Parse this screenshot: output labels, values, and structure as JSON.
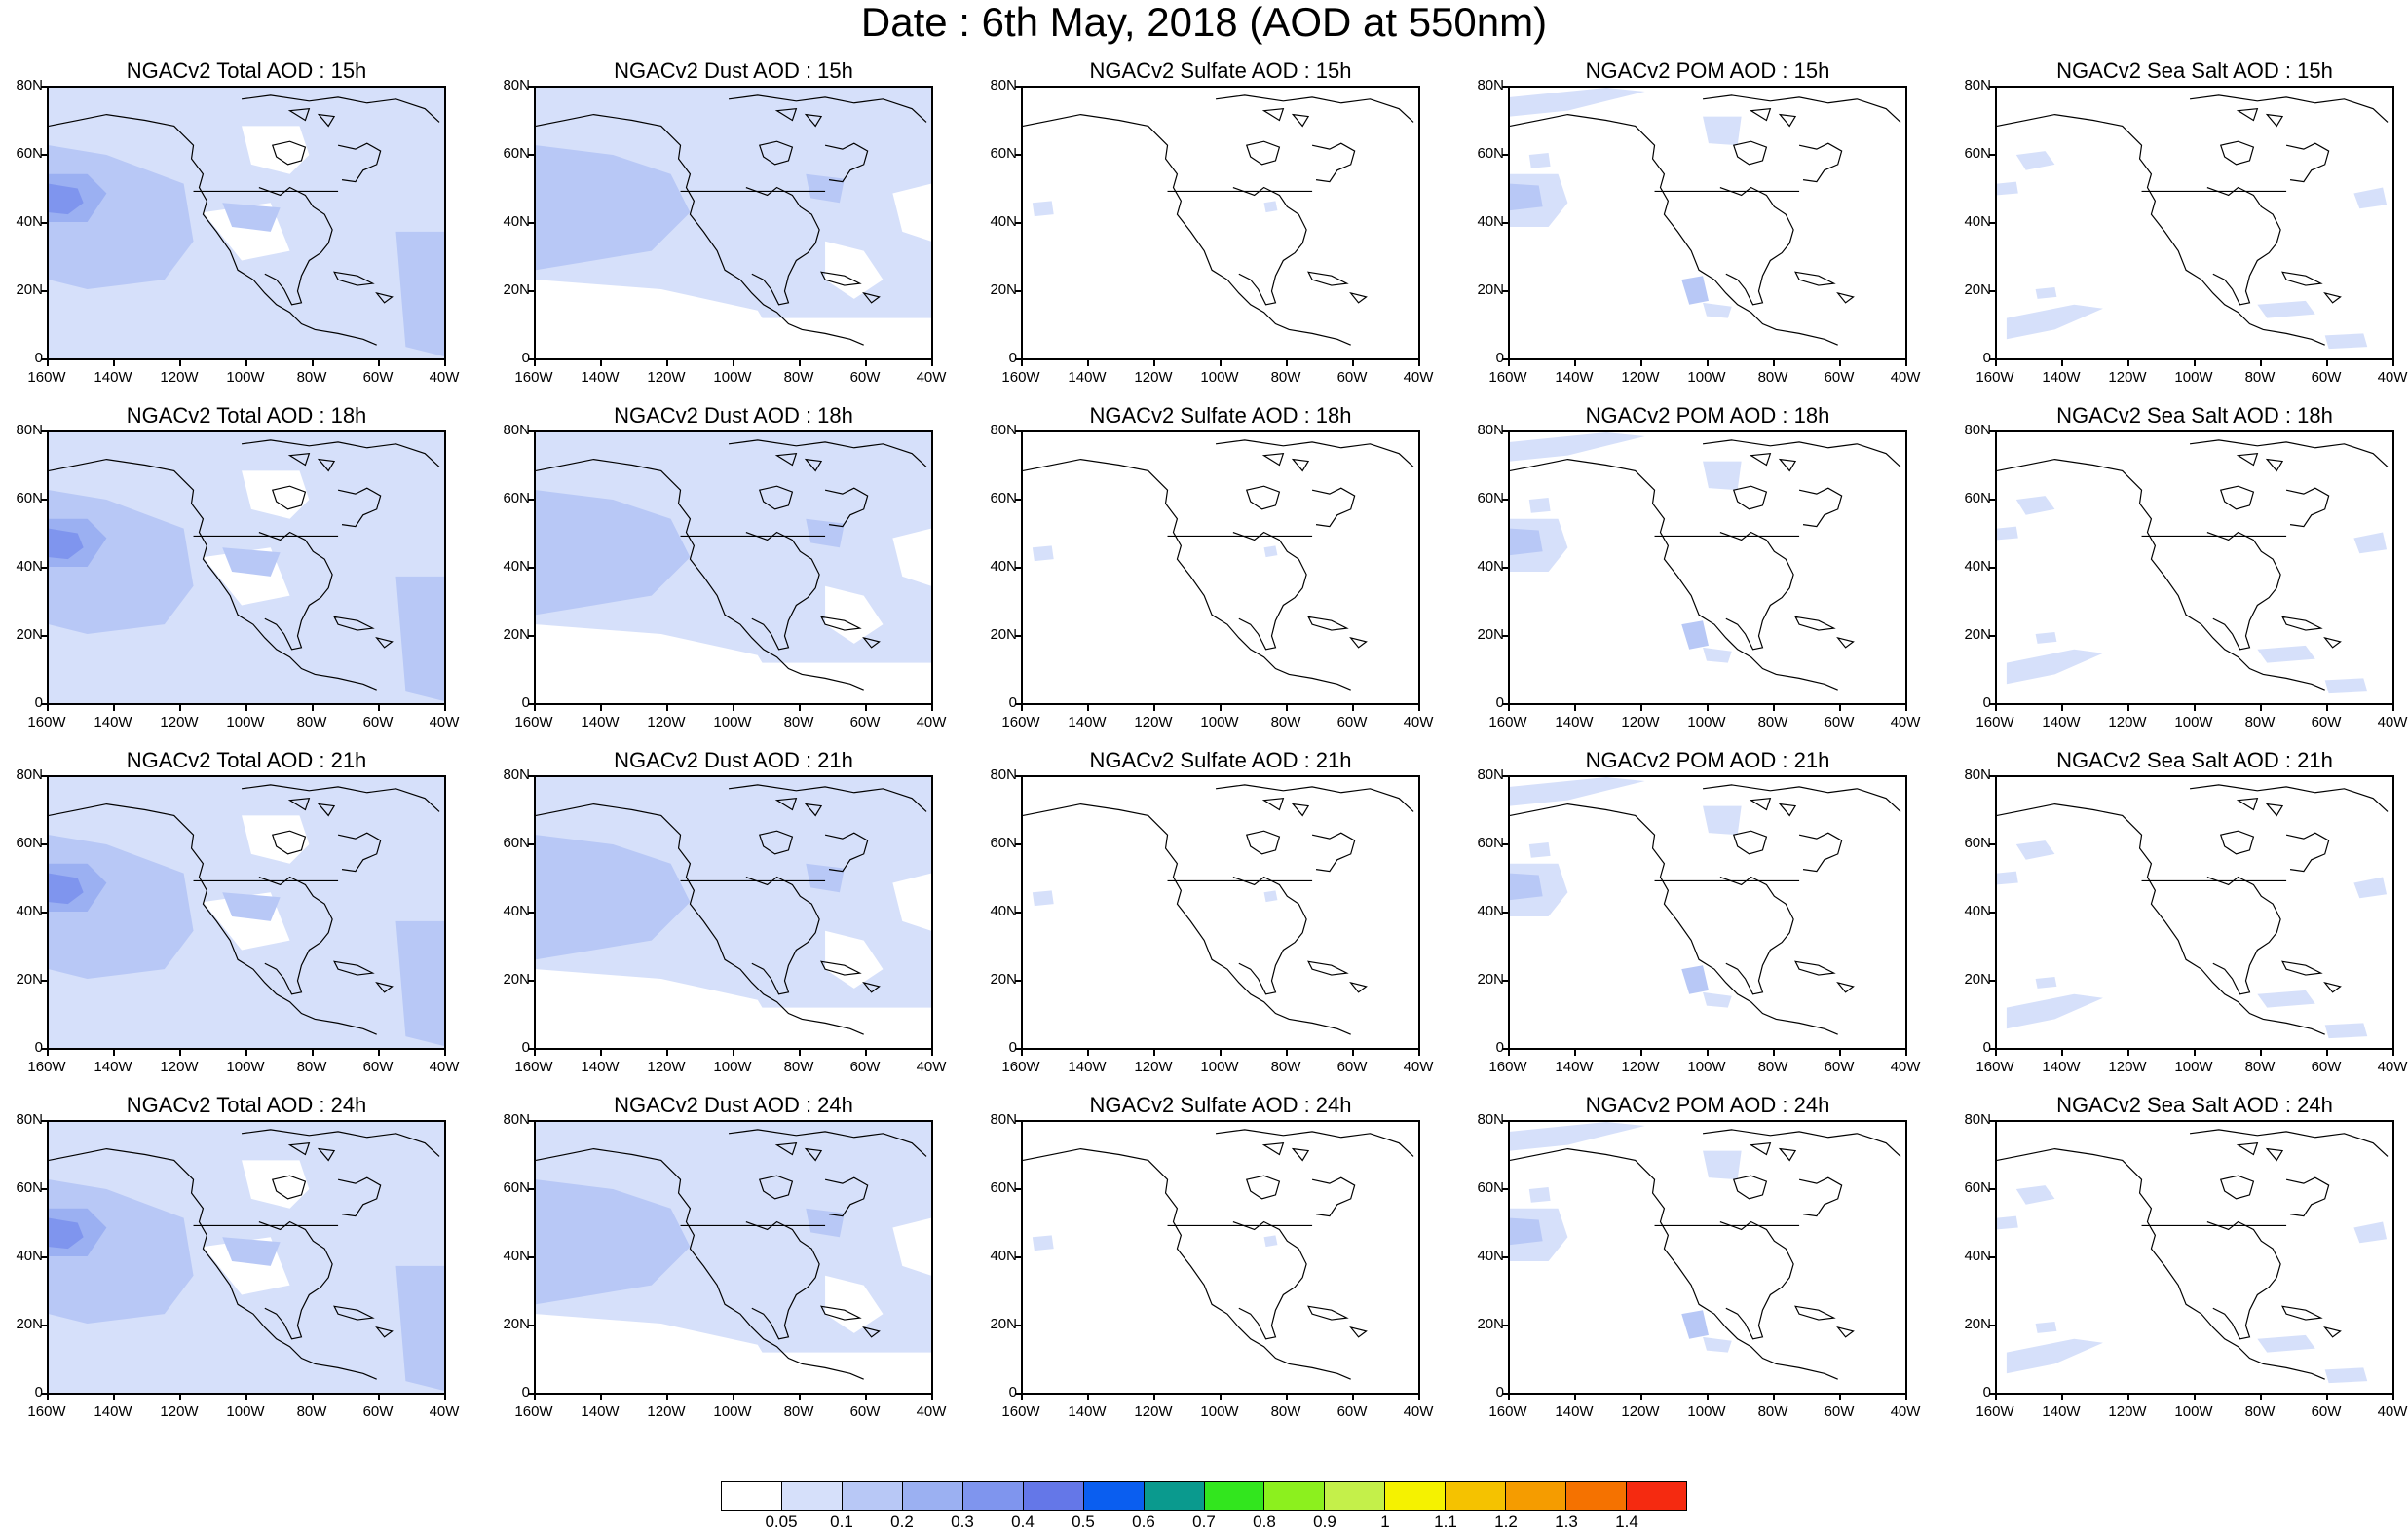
{
  "title": "Date : 6th May, 2018 (AOD at 550nm)",
  "axes": {
    "yticks": [
      "80N",
      "60N",
      "40N",
      "20N",
      "0"
    ],
    "xticks": [
      "160W",
      "140W",
      "120W",
      "100W",
      "80W",
      "60W",
      "40W"
    ]
  },
  "panels": [
    [
      {
        "title": "NGACv2 Total AOD : 15h",
        "species": "total"
      },
      {
        "title": "NGACv2 Dust AOD : 15h",
        "species": "dust"
      },
      {
        "title": "NGACv2 Sulfate AOD : 15h",
        "species": "sulfate"
      },
      {
        "title": "NGACv2 POM AOD : 15h",
        "species": "pom"
      },
      {
        "title": "NGACv2 Sea Salt AOD : 15h",
        "species": "seasalt"
      }
    ],
    [
      {
        "title": "NGACv2 Total AOD : 18h",
        "species": "total"
      },
      {
        "title": "NGACv2 Dust AOD : 18h",
        "species": "dust"
      },
      {
        "title": "NGACv2 Sulfate AOD : 18h",
        "species": "sulfate"
      },
      {
        "title": "NGACv2 POM AOD : 18h",
        "species": "pom"
      },
      {
        "title": "NGACv2 Sea Salt AOD : 18h",
        "species": "seasalt"
      }
    ],
    [
      {
        "title": "NGACv2 Total AOD : 21h",
        "species": "total"
      },
      {
        "title": "NGACv2 Dust AOD : 21h",
        "species": "dust"
      },
      {
        "title": "NGACv2 Sulfate AOD : 21h",
        "species": "sulfate"
      },
      {
        "title": "NGACv2 POM AOD : 21h",
        "species": "pom"
      },
      {
        "title": "NGACv2 Sea Salt AOD : 21h",
        "species": "seasalt"
      }
    ],
    [
      {
        "title": "NGACv2 Total AOD : 24h",
        "species": "total"
      },
      {
        "title": "NGACv2 Dust AOD : 24h",
        "species": "dust"
      },
      {
        "title": "NGACv2 Sulfate AOD : 24h",
        "species": "sulfate"
      },
      {
        "title": "NGACv2 POM AOD : 24h",
        "species": "pom"
      },
      {
        "title": "NGACv2 Sea Salt  AOD : 24h",
        "species": "seasalt"
      }
    ]
  ],
  "colorbar": {
    "labels": [
      "0.05",
      "0.1",
      "0.2",
      "0.3",
      "0.4",
      "0.5",
      "0.6",
      "0.7",
      "0.8",
      "0.9",
      "1",
      "1.1",
      "1.2",
      "1.3",
      "1.4"
    ],
    "colors": [
      "#ffffff",
      "#d6e0fa",
      "#b8c8f6",
      "#9bb0f2",
      "#7f95ee",
      "#6477e8",
      "#0a5ef0",
      "#0a9a8e",
      "#32e61e",
      "#8cf01e",
      "#c4f04a",
      "#f5f200",
      "#f5c200",
      "#f59c00",
      "#f57200",
      "#f52a10"
    ]
  },
  "levels_palette": {
    "white": "#ffffff",
    "l1": "#d6e0fa",
    "l2": "#b8c8f6",
    "l3": "#9bb0f2",
    "l4": "#7f95ee"
  }
}
